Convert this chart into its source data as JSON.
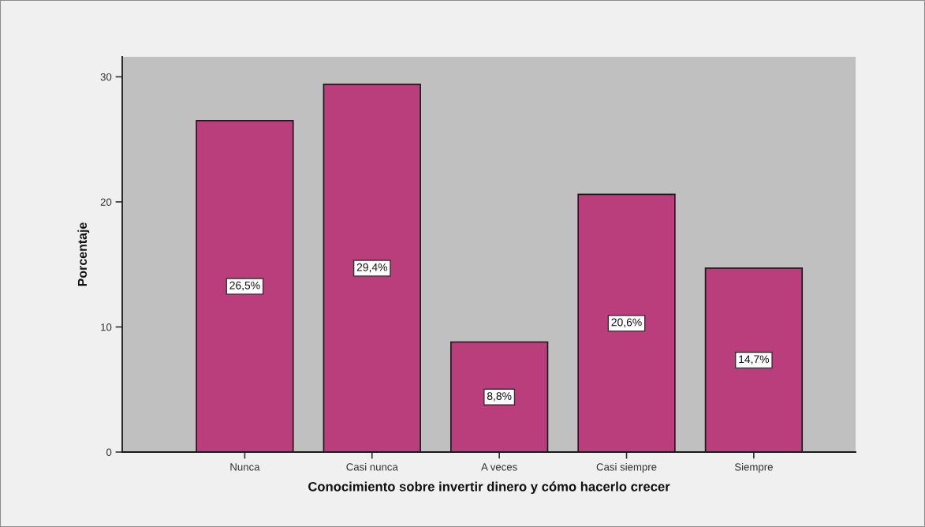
{
  "chart_data": {
    "type": "bar",
    "xlabel": "Conocimiento sobre invertir dinero y cómo hacerlo crecer",
    "ylabel": "Porcentaje",
    "categories": [
      "Nunca",
      "Casi nunca",
      "A veces",
      "Casi siempre",
      "Siempre"
    ],
    "values": [
      26.5,
      29.4,
      8.8,
      20.6,
      14.7
    ],
    "value_labels": [
      "26,5%",
      "29,4%",
      "8,8%",
      "20,6%",
      "14,7%"
    ],
    "color": "#b93e7b",
    "ylim": [
      0,
      31.6
    ],
    "yticks": [
      0,
      10,
      20,
      30
    ],
    "grid": false,
    "legend": false
  }
}
